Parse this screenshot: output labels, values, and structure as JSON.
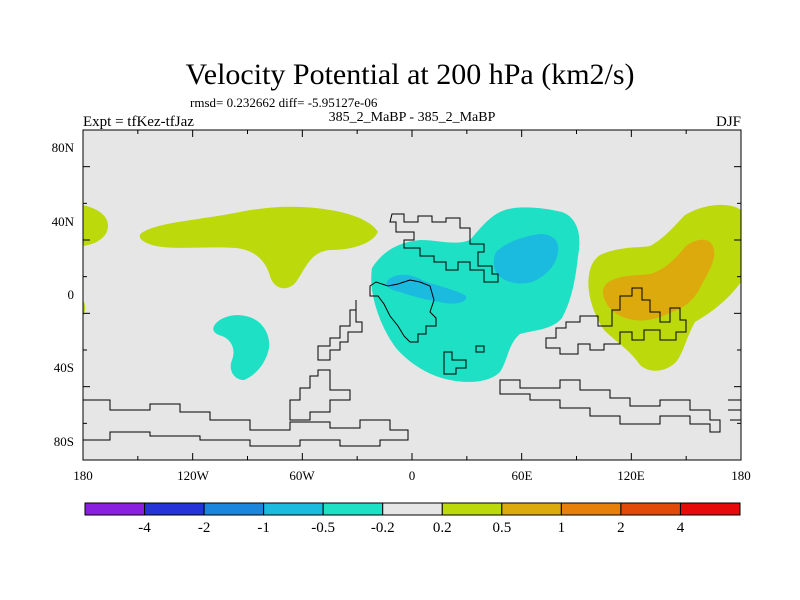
{
  "title": "Velocity Potential at 200 hPa (km2/s)",
  "stats_line": "rmsd= 0.232662 diff= -5.95127e-06",
  "expt_label": "Expt = tfKez-tfJaz",
  "run_label": "385_2_MaBP - 385_2_MaBP",
  "season_label": "DJF",
  "y_ticks": [
    "80N",
    "40N",
    "0",
    "40S",
    "80S"
  ],
  "x_ticks": [
    "180",
    "120W",
    "60W",
    "0",
    "60E",
    "120E",
    "180"
  ],
  "colorbar": {
    "colors": [
      "#8a1fe0",
      "#2533d9",
      "#1a86dd",
      "#1bbbe0",
      "#1ee0c4",
      "#e6e6e6",
      "#bcd90c",
      "#dcaa0c",
      "#e6800a",
      "#e24a0a",
      "#e60a0a"
    ],
    "labels": [
      "-4",
      "-2",
      "-1",
      "-0.5",
      "-0.2",
      "0.2",
      "0.5",
      "1",
      "2",
      "4"
    ]
  },
  "field_colors": {
    "background": "#e6e6e6",
    "neg_light": "#1ee0c4",
    "neg_strong": "#1bbbe0",
    "pos_light": "#bcd90c",
    "pos_mid": "#dcaa0c"
  }
}
